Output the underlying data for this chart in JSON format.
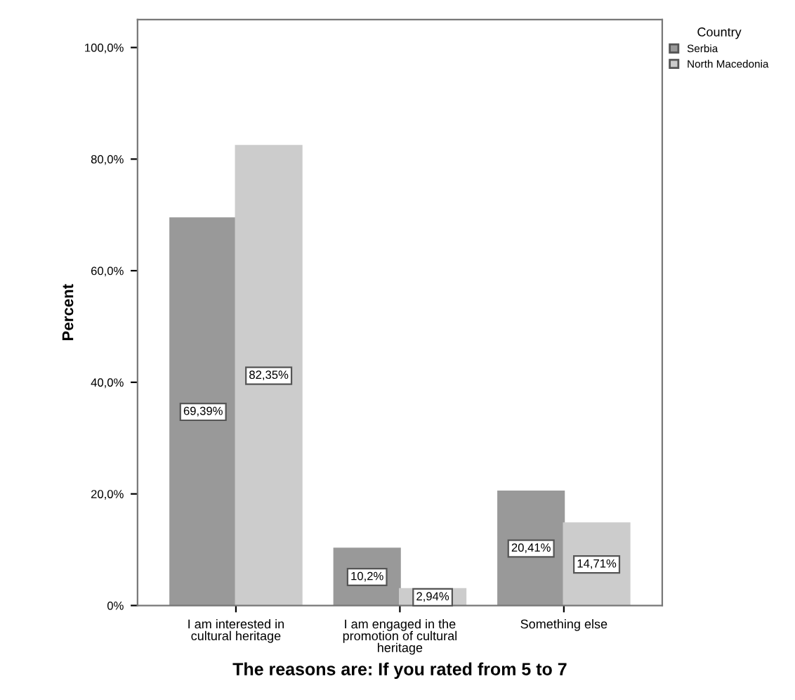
{
  "chart_data": {
    "type": "bar",
    "xlabel": "The reasons are: If you rated from 5 to 7",
    "ylabel": "Percent",
    "legend_title": "Country",
    "legend": "top right",
    "categories": [
      "I am interested in cultural heritage",
      "I am engaged in the promotion of cultural heritage",
      "Something else"
    ],
    "series": [
      {
        "name": "Serbia",
        "color": "#999999",
        "values": [
          69.39,
          10.2,
          20.41
        ],
        "value_labels": [
          "69,39%",
          "10,2%",
          "20,41%"
        ]
      },
      {
        "name": "North Macedonia",
        "color": "#cccccc",
        "values": [
          82.35,
          2.94,
          14.71
        ],
        "value_labels": [
          "82,35%",
          "2,94%",
          "14,71%"
        ]
      }
    ],
    "ylim": [
      0,
      105
    ],
    "yticks": [
      {
        "value": 0,
        "label": "0%"
      },
      {
        "value": 20,
        "label": "20,0%"
      },
      {
        "value": 40,
        "label": "40,0%"
      },
      {
        "value": 60,
        "label": "60,0%"
      },
      {
        "value": 80,
        "label": "80,0%"
      },
      {
        "value": 100,
        "label": "100,0%"
      }
    ],
    "grid": false
  }
}
